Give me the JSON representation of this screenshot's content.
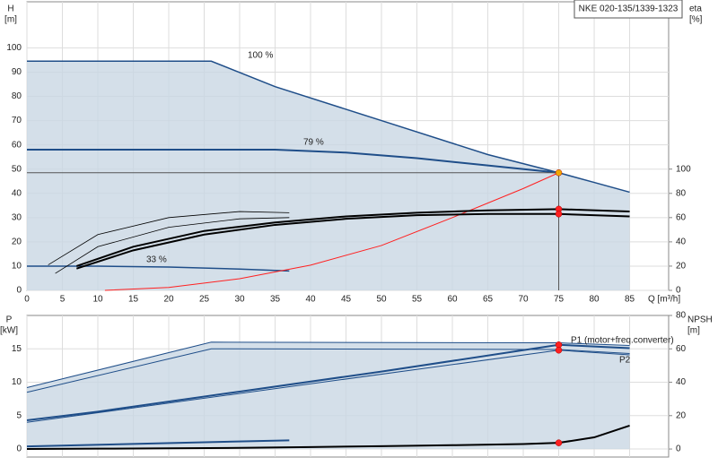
{
  "chart_data": [
    {
      "type": "line",
      "title": "NKE 020-135/1339-1323",
      "y_label": [
        "H",
        "[m]"
      ],
      "y2_label": [
        "eta",
        "[%]"
      ],
      "x_label": "Q [m³/h]",
      "xlim": [
        0,
        90.5
      ],
      "xticks": [
        0,
        5,
        10,
        15,
        20,
        25,
        30,
        35,
        40,
        45,
        50,
        55,
        60,
        65,
        70,
        75,
        80,
        85
      ],
      "ylim": [
        0,
        119
      ],
      "yticks": [
        0,
        10,
        20,
        30,
        40,
        50,
        60,
        70,
        80,
        90,
        100
      ],
      "y2lim": [
        0,
        238
      ],
      "y2ticks": [
        0,
        20,
        40,
        60,
        80,
        100
      ],
      "grid": true,
      "series": [
        {
          "name": "100 %",
          "color": "#1f4e89",
          "width": 1.5,
          "fill": true,
          "x": [
            0,
            26,
            35,
            50,
            65,
            75,
            80,
            85
          ],
          "values": [
            94.5,
            94.5,
            84,
            70,
            56,
            48.5,
            44.5,
            40.5
          ]
        },
        {
          "name": "79 %",
          "color": "#1f4e89",
          "width": 2,
          "x": [
            0,
            20,
            35,
            45,
            55,
            65,
            75
          ],
          "values": [
            58,
            58,
            58,
            56.8,
            54.5,
            51.5,
            48.5
          ]
        },
        {
          "name": "33 %",
          "color": "#1f4e89",
          "width": 1.5,
          "x": [
            0,
            10,
            20,
            30,
            37
          ],
          "values": [
            10,
            10,
            9.6,
            8.8,
            8
          ]
        },
        {
          "color": "#555555",
          "width": 1,
          "x": [
            0,
            75,
            75
          ],
          "values": [
            48.5,
            48.5,
            0
          ]
        },
        {
          "color": "#ff2020",
          "width": 1,
          "x": [
            11,
            20,
            30,
            40,
            50,
            60,
            70,
            75
          ],
          "values": [
            0,
            1.2,
            4.8,
            10.4,
            18.5,
            30,
            42,
            48.5
          ]
        },
        {
          "color": "#000000",
          "width": 2,
          "axis": "y2",
          "x": [
            7,
            15,
            25,
            35,
            45,
            55,
            65,
            75,
            85
          ],
          "values": [
            20,
            36,
            49,
            56,
            61,
            64,
            66,
            67,
            65
          ]
        },
        {
          "color": "#000000",
          "width": 2,
          "axis": "y2",
          "x": [
            7,
            15,
            25,
            35,
            45,
            55,
            65,
            75,
            85
          ],
          "values": [
            18,
            33,
            46,
            54,
            59,
            62,
            63,
            63,
            61
          ]
        },
        {
          "color": "#000000",
          "width": 0.8,
          "axis": "y2",
          "x": [
            3,
            10,
            20,
            30,
            37
          ],
          "values": [
            21,
            46,
            60,
            65,
            64
          ]
        },
        {
          "color": "#000000",
          "width": 0.8,
          "axis": "y2",
          "x": [
            4,
            10,
            20,
            30,
            37
          ],
          "values": [
            14,
            36,
            52,
            59,
            60
          ]
        },
        {
          "color": "#f0a800",
          "marker": true,
          "x": [
            75
          ],
          "values": [
            48.5
          ]
        },
        {
          "color": "#ff2020",
          "marker": true,
          "axis": "y2",
          "x": [
            75,
            75
          ],
          "values": [
            67,
            63
          ]
        }
      ]
    },
    {
      "type": "line",
      "y_label": [
        "P",
        "[kW]"
      ],
      "y2_label": [
        "NPSH",
        "[m]"
      ],
      "xlim": [
        0,
        90.5
      ],
      "ylim": [
        -1.2,
        20
      ],
      "yticks": [
        0,
        5,
        10,
        15
      ],
      "y2lim": [
        -4.8,
        80
      ],
      "y2ticks": [
        0,
        20,
        40,
        60,
        80
      ],
      "grid": true,
      "series": [
        {
          "color": "#1f4e89",
          "width": 1,
          "fill": true,
          "x": [
            0,
            26,
            75,
            85
          ],
          "values": [
            9.2,
            16,
            15.9,
            15.5
          ]
        },
        {
          "color": "#1f4e89",
          "width": 1,
          "x": [
            0,
            26,
            75,
            85
          ],
          "values": [
            8.5,
            15,
            14.9,
            14.3
          ]
        },
        {
          "name": "P1 (motor+freq.converter)",
          "color": "#1f4e89",
          "width": 2,
          "x": [
            0,
            10,
            30,
            50,
            75,
            85
          ],
          "values": [
            4.3,
            5.6,
            8.6,
            11.6,
            15.6,
            15.1
          ]
        },
        {
          "name": "P2",
          "color": "#1f4e89",
          "width": 1,
          "x": [
            0,
            75,
            85
          ],
          "values": [
            4,
            14.8,
            14.1
          ]
        },
        {
          "color": "#1f4e89",
          "width": 2,
          "x": [
            0,
            37
          ],
          "values": [
            0.4,
            1.3
          ]
        },
        {
          "color": "#000000",
          "width": 2,
          "axis": "y2",
          "x": [
            0,
            10,
            20,
            30,
            40,
            50,
            60,
            70,
            75,
            80,
            85
          ],
          "values": [
            0,
            0.2,
            0.4,
            0.7,
            1.2,
            1.7,
            2.3,
            3.0,
            3.7,
            7,
            14
          ]
        },
        {
          "color": "#ff2020",
          "marker": true,
          "x": [
            75,
            75
          ],
          "values": [
            15.6,
            14.8
          ]
        },
        {
          "color": "#ff2020",
          "marker": true,
          "axis": "y2",
          "x": [
            75
          ],
          "values": [
            3.7
          ]
        }
      ]
    }
  ]
}
